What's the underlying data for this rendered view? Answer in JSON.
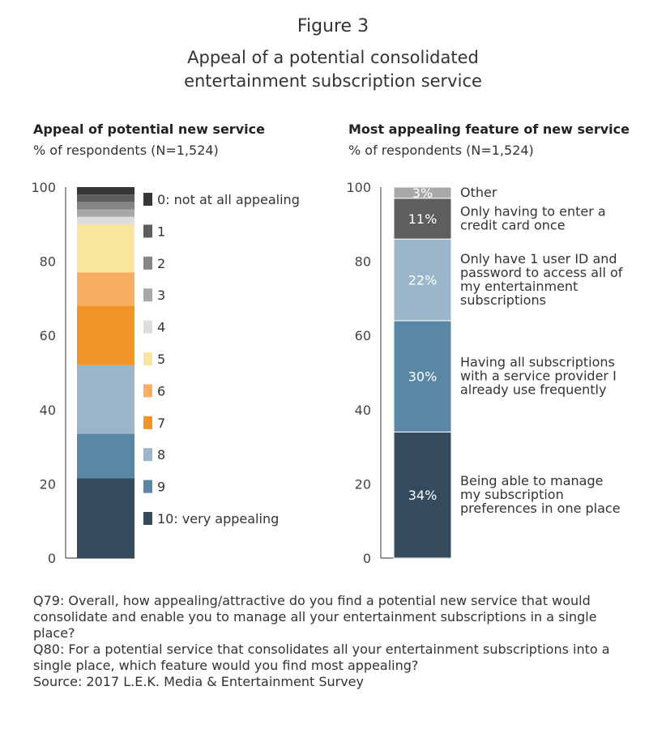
{
  "figure": {
    "label": "Figure 3",
    "title_lines": [
      "Appeal of a potential consolidated",
      "entertainment subscription service"
    ]
  },
  "chart_data": [
    {
      "type": "bar",
      "stacked": true,
      "title": "Appeal of potential new service",
      "subtitle": "% of respondents (N=1,524)",
      "ylim": [
        0,
        100
      ],
      "yticks": [
        "0",
        "20",
        "40",
        "60",
        "80",
        "100"
      ],
      "legend_placement": "right",
      "series": [
        {
          "name": "10: very appealing",
          "value": 21.5,
          "color": "#334b5c"
        },
        {
          "name": "9",
          "value": 12,
          "color": "#5a87a5"
        },
        {
          "name": "8",
          "value": 18.5,
          "color": "#9cb6c9"
        },
        {
          "name": "7",
          "value": 16,
          "color": "#f39426"
        },
        {
          "name": "6",
          "value": 9,
          "color": "#f8af62"
        },
        {
          "name": "5",
          "value": 13,
          "color": "#f9e69c"
        },
        {
          "name": "4",
          "value": 2,
          "color": "#dddddd"
        },
        {
          "name": "3",
          "value": 2,
          "color": "#a8a8a8"
        },
        {
          "name": "2",
          "value": 2,
          "color": "#858585"
        },
        {
          "name": "1",
          "value": 2,
          "color": "#5e5e5e"
        },
        {
          "name": "0: not at all appealing",
          "value": 2,
          "color": "#363636"
        }
      ]
    },
    {
      "type": "bar",
      "stacked": true,
      "title": "Most appealing feature of new service",
      "subtitle": "% of respondents (N=1,524)",
      "ylim": [
        0,
        100
      ],
      "yticks": [
        "0",
        "20",
        "40",
        "60",
        "80",
        "100"
      ],
      "series": [
        {
          "name": "Being able to manage my subscription preferences in one place",
          "label_lines": [
            "Being able to manage",
            "my subscription",
            "preferences in one place"
          ],
          "value": 34,
          "data_label": "34%",
          "color": "#334b5c"
        },
        {
          "name": "Having all subscriptions with a service provider I already use frequently",
          "label_lines": [
            "Having all subscriptions",
            "with a service provider I",
            "already use frequently"
          ],
          "value": 30,
          "data_label": "30%",
          "color": "#5a87a5"
        },
        {
          "name": "Only have 1 user ID and password to access all of my entertainment subscriptions",
          "label_lines": [
            "Only have 1 user ID and",
            "password to access all of",
            "my entertainment",
            "subscriptions"
          ],
          "value": 22,
          "data_label": "22%",
          "color": "#9cb6c9"
        },
        {
          "name": "Only having to enter a credit card once",
          "label_lines": [
            "Only having to enter a",
            "credit card once"
          ],
          "value": 11,
          "data_label": "11%",
          "color": "#5e5e5e"
        },
        {
          "name": "Other",
          "label_lines": [
            "Other"
          ],
          "value": 3,
          "data_label": "3%",
          "color": "#a8a8a8"
        }
      ]
    }
  ],
  "notes": [
    "Q79: Overall, how appealing/attractive do you find a potential new service that would",
    "consolidate and enable you to manage all your entertainment subscriptions in a single",
    "place?",
    "Q80: For a potential service that consolidates all your entertainment subscriptions into a",
    "single place, which feature would you find most appealing?",
    "Source: 2017 L.E.K. Media & Entertainment Survey"
  ]
}
